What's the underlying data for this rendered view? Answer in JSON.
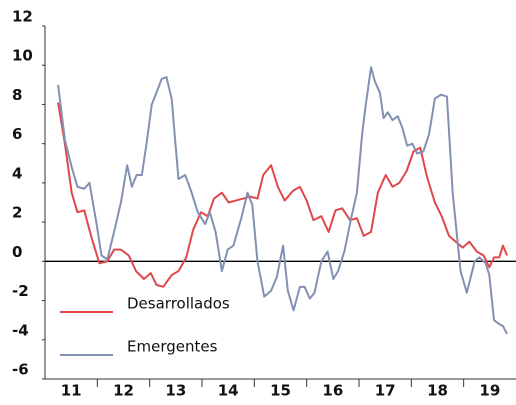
{
  "chart_data": {
    "type": "line",
    "xlim": [
      2011,
      2020
    ],
    "ylim": [
      -6,
      12
    ],
    "xticks": [
      {
        "value": 2011.5,
        "label": "11"
      },
      {
        "value": 2012.5,
        "label": "12"
      },
      {
        "value": 2013.5,
        "label": "13"
      },
      {
        "value": 2014.5,
        "label": "14"
      },
      {
        "value": 2015.5,
        "label": "15"
      },
      {
        "value": 2016.5,
        "label": "16"
      },
      {
        "value": 2017.5,
        "label": "17"
      },
      {
        "value": 2018.5,
        "label": "18"
      },
      {
        "value": 2019.5,
        "label": "19"
      }
    ],
    "yticks": [
      -6,
      -4,
      -2,
      0,
      2,
      4,
      6,
      8,
      10,
      12
    ],
    "legend": "lower left",
    "series": [
      {
        "name": "Desarrollados",
        "color": "#e0484a",
        "x": [
          2011.25,
          2011.38,
          2011.51,
          2011.62,
          2011.75,
          2011.89,
          2012.04,
          2012.19,
          2012.32,
          2012.45,
          2012.6,
          2012.74,
          2012.89,
          2013.02,
          2013.13,
          2013.26,
          2013.42,
          2013.55,
          2013.7,
          2013.83,
          2013.98,
          2014.11,
          2014.23,
          2014.38,
          2014.51,
          2014.64,
          2014.79,
          2014.92,
          2015.06,
          2015.17,
          2015.32,
          2015.45,
          2015.58,
          2015.74,
          2015.87,
          2016,
          2016.13,
          2016.28,
          2016.42,
          2016.55,
          2016.68,
          2016.83,
          2016.96,
          2017.09,
          2017.23,
          2017.36,
          2017.51,
          2017.64,
          2017.77,
          2017.91,
          2018.04,
          2018.17,
          2018.3,
          2018.45,
          2018.58,
          2018.72,
          2018.85,
          2018.98,
          2019.11,
          2019.25,
          2019.38,
          2019.49,
          2019.58,
          2019.68,
          2019.75,
          2019.83
        ],
        "values": [
          8.1,
          6.0,
          3.5,
          2.5,
          2.6,
          1.2,
          -0.1,
          0.0,
          0.6,
          0.6,
          0.3,
          -0.5,
          -0.9,
          -0.6,
          -1.2,
          -1.3,
          -0.7,
          -0.5,
          0.2,
          1.6,
          2.5,
          2.3,
          3.2,
          3.5,
          3.0,
          3.1,
          3.2,
          3.3,
          3.2,
          4.4,
          4.9,
          3.8,
          3.1,
          3.6,
          3.8,
          3.1,
          2.1,
          2.3,
          1.5,
          2.6,
          2.7,
          2.1,
          2.2,
          1.3,
          1.5,
          3.5,
          4.4,
          3.8,
          4.0,
          4.6,
          5.6,
          5.8,
          4.3,
          3.0,
          2.3,
          1.3,
          1.0,
          0.7,
          1.0,
          0.5,
          0.3,
          -0.3,
          0.2,
          0.2,
          0.8,
          0.3
        ]
      },
      {
        "name": "Emergentes",
        "color": "#8390b5",
        "x": [
          2011.25,
          2011.38,
          2011.51,
          2011.62,
          2011.75,
          2011.85,
          2011.98,
          2012.08,
          2012.19,
          2012.32,
          2012.45,
          2012.57,
          2012.66,
          2012.75,
          2012.85,
          2012.94,
          2013.04,
          2013.13,
          2013.23,
          2013.32,
          2013.42,
          2013.55,
          2013.68,
          2013.79,
          2013.92,
          2014.06,
          2014.15,
          2014.26,
          2014.38,
          2014.49,
          2014.6,
          2014.75,
          2014.87,
          2014.96,
          2015.06,
          2015.19,
          2015.32,
          2015.43,
          2015.55,
          2015.64,
          2015.75,
          2015.87,
          2015.96,
          2016.06,
          2016.15,
          2016.28,
          2016.4,
          2016.51,
          2016.6,
          2016.72,
          2016.85,
          2016.96,
          2017.06,
          2017.13,
          2017.23,
          2017.3,
          2017.4,
          2017.47,
          2017.55,
          2017.64,
          2017.74,
          2017.83,
          2017.92,
          2018.02,
          2018.11,
          2018.23,
          2018.34,
          2018.45,
          2018.57,
          2018.68,
          2018.79,
          2018.94,
          2019.06,
          2019.21,
          2019.3,
          2019.42,
          2019.49,
          2019.58,
          2019.68,
          2019.75,
          2019.83
        ],
        "values": [
          9.0,
          6.2,
          4.8,
          3.8,
          3.7,
          4.0,
          2.0,
          0.3,
          0.1,
          1.5,
          3.0,
          4.9,
          3.8,
          4.4,
          4.4,
          6.0,
          8.0,
          8.6,
          9.3,
          9.4,
          8.3,
          4.2,
          4.4,
          3.6,
          2.5,
          1.9,
          2.5,
          1.5,
          -0.5,
          0.6,
          0.8,
          2.2,
          3.5,
          2.9,
          0.0,
          -1.8,
          -1.5,
          -0.8,
          0.8,
          -1.5,
          -2.5,
          -1.3,
          -1.3,
          -1.9,
          -1.6,
          0.0,
          0.5,
          -0.9,
          -0.5,
          0.5,
          2.2,
          3.5,
          6.5,
          8.0,
          9.9,
          9.2,
          8.6,
          7.3,
          7.6,
          7.2,
          7.4,
          6.8,
          5.9,
          6.0,
          5.5,
          5.6,
          6.5,
          8.3,
          8.5,
          8.4,
          3.5,
          -0.5,
          -1.6,
          0.0,
          0.2,
          -0.1,
          -0.7,
          -3.0,
          -3.2,
          -3.3,
          -3.7
        ]
      }
    ]
  }
}
